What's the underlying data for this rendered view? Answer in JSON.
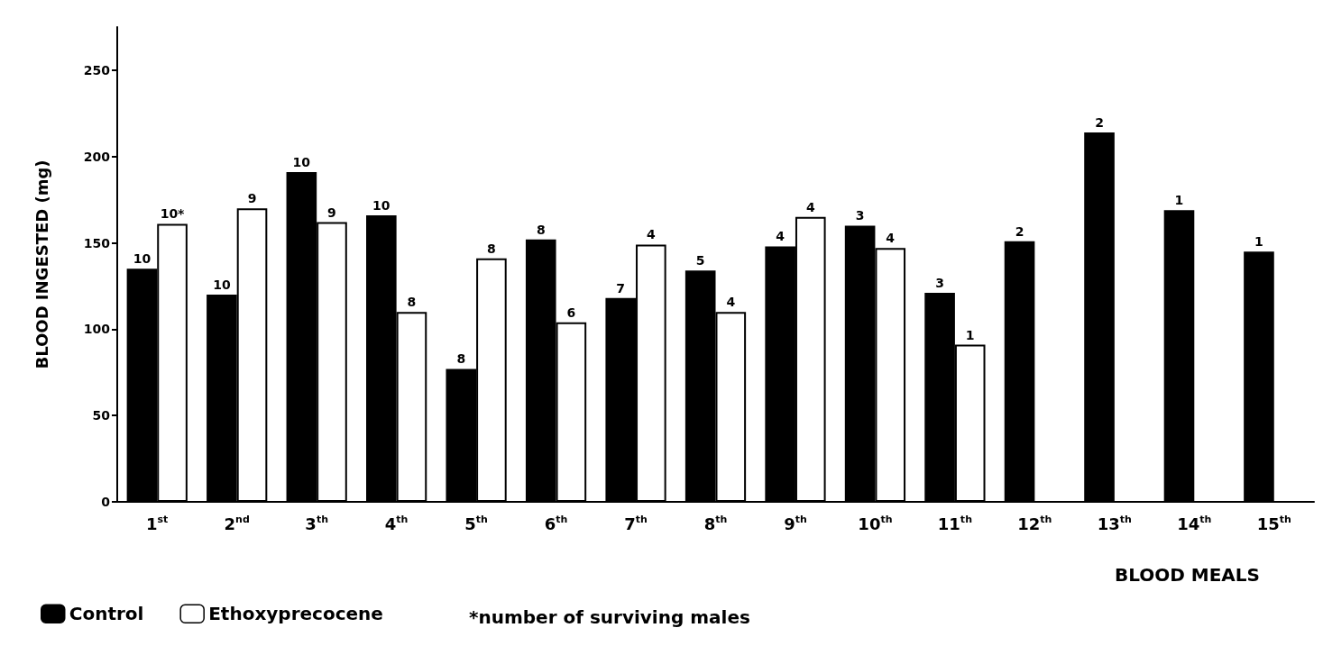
{
  "chart_data": {
    "type": "bar",
    "ylabel": "BLOOD INGESTED (mg)",
    "xlabel": "BLOOD MEALS",
    "categories": [
      "1$^{st}$",
      "2$^{nd}$",
      "3$^{th}$",
      "4$^{th}$",
      "5$^{th}$",
      "6$^{th}$",
      "7$^{th}$",
      "8$^{th}$",
      "9$^{th}$",
      "10$^{th}$",
      "11$^{th}$",
      "12$^{th}$",
      "13$^{th}$",
      "14$^{th}$",
      "15$^{th}$"
    ],
    "series": [
      {
        "name": "Control",
        "color": "#000000",
        "values": [
          135,
          120,
          191,
          166,
          77,
          152,
          118,
          134,
          148,
          160,
          121,
          151,
          214,
          169,
          145
        ]
      },
      {
        "name": "Ethoxyprecocene",
        "color": "#ffffff",
        "values": [
          161,
          170,
          162,
          110,
          141,
          104,
          149,
          110,
          165,
          147,
          91,
          null,
          null,
          null,
          null
        ]
      }
    ],
    "ylim": [
      0,
      275
    ],
    "yticks": [
      0,
      50,
      100,
      150,
      200,
      250
    ],
    "grid": false,
    "legend": "bottom left",
    "annotations": [
      "*number of surviving males",
      {
        "text": "10",
        "x": "1$^{st}$",
        "y": 135
      },
      {
        "text": "10*",
        "x": "1$^{st}$",
        "y": 161
      },
      {
        "text": "10",
        "x": "2$^{nd}$",
        "y": 120
      },
      {
        "text": "9",
        "x": "2$^{nd}$",
        "y": 170
      },
      {
        "text": "10",
        "x": "3$^{th}$",
        "y": 191
      },
      {
        "text": "9",
        "x": "3$^{th}$",
        "y": 162
      },
      {
        "text": "10",
        "x": "4$^{th}$",
        "y": 166
      },
      {
        "text": "8",
        "x": "4$^{th}$",
        "y": 110
      },
      {
        "text": "8",
        "x": "5$^{th}$",
        "y": 77
      },
      {
        "text": "8",
        "x": "5$^{th}$",
        "y": 141
      },
      {
        "text": "8",
        "x": "6$^{th}$",
        "y": 152
      },
      {
        "text": "6",
        "x": "6$^{th}$",
        "y": 104
      },
      {
        "text": "7",
        "x": "7$^{th}$",
        "y": 118
      },
      {
        "text": "4",
        "x": "7$^{th}$",
        "y": 149
      },
      {
        "text": "5",
        "x": "8$^{th}$",
        "y": 134
      },
      {
        "text": "4",
        "x": "8$^{th}$",
        "y": 110
      },
      {
        "text": "4",
        "x": "9$^{th}$",
        "y": 148
      },
      {
        "text": "4",
        "x": "9$^{th}$",
        "y": 165
      },
      {
        "text": "3",
        "x": "10$^{th}$",
        "y": 160
      },
      {
        "text": "4",
        "x": "10$^{th}$",
        "y": 147
      },
      {
        "text": "3",
        "x": "11$^{th}$",
        "y": 121
      },
      {
        "text": "1",
        "x": "11$^{th}$",
        "y": 91
      },
      {
        "text": "2",
        "x": "12$^{th}$",
        "y": 151
      },
      {
        "text": "2",
        "x": "13$^{th}$",
        "y": 214
      },
      {
        "text": "1",
        "x": "14$^{th}$",
        "y": 169
      },
      {
        "text": "1",
        "x": "15$^{th}$",
        "y": 145
      }
    ]
  }
}
